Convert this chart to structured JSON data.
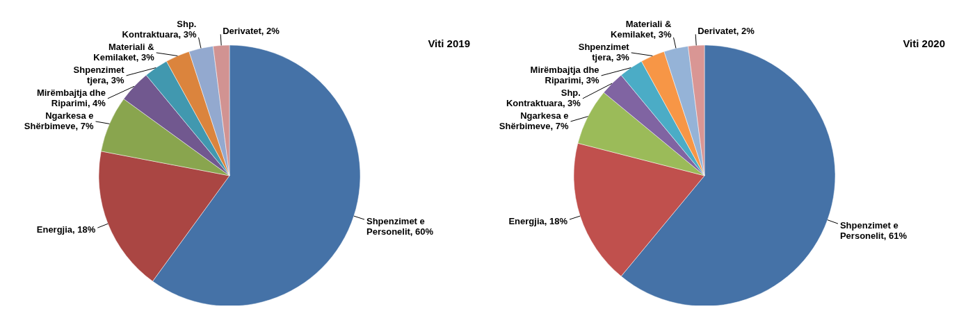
{
  "chart_data": [
    {
      "type": "pie",
      "title": "Viti 2019",
      "categories": [
        "Shpenzimet e Personelit",
        "Energjia",
        "Ngarkesa e Shërbimeve",
        "Mirëmbajtja dhe Riparimi",
        "Shpenzimet tjera",
        "Materiali & Kemilaket",
        "Shp. Kontraktuara",
        "Derivatet"
      ],
      "values": [
        60,
        18,
        7,
        4,
        3,
        3,
        3,
        2
      ],
      "value_labels": [
        ", 60%",
        ", 18%",
        ", 7%",
        ", 4%",
        ", 3%",
        ", 3%",
        ", 3%",
        ", 2%"
      ],
      "colors": [
        "#4572a7",
        "#aa4643",
        "#89a54e",
        "#71588f",
        "#4198af",
        "#db843d",
        "#93a9cf",
        "#d19392"
      ]
    },
    {
      "type": "pie",
      "title": "Viti 2020",
      "categories": [
        "Shpenzimet e Personelit",
        "Energjia",
        "Ngarkesa e Shërbimeve",
        "Shp. Kontraktuara",
        "Mirëmbajtja dhe Riparimi",
        "Shpenzimet tjera",
        "Materiali & Kemilaket",
        "Derivatet"
      ],
      "values": [
        61,
        18,
        7,
        3,
        3,
        3,
        3,
        2
      ],
      "value_labels": [
        ", 61%",
        ", 18%",
        ", 7%",
        ", 3%",
        ", 3%",
        ", 3%",
        ", 3%",
        ", 2%"
      ],
      "colors": [
        "#4572a7",
        "#c0504d",
        "#9bbb59",
        "#8064a2",
        "#4bacc6",
        "#f79646",
        "#95b3d7",
        "#d99694"
      ]
    }
  ]
}
